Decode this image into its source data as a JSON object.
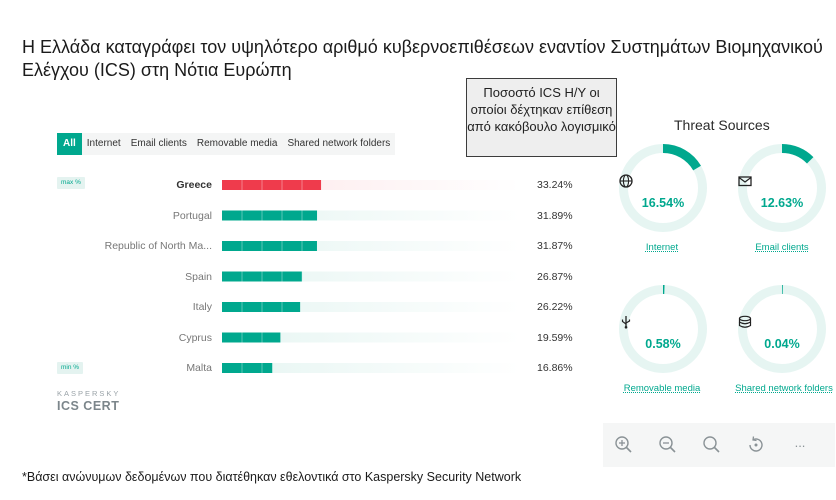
{
  "headline": "Η Ελλάδα καταγράφει τον υψηλότερο αριθμό κυβερνοεπιθέσεων εναντίον Συστημάτων Βιομηχανικού Ελέγχου (ICS) στη Νότια Ευρώπη",
  "tooltip": "Ποσοστό ICS Η/Υ οι οποίοι δέχτηκαν επίθεση από κακόβουλο λογισμικό",
  "tabs": [
    "All",
    "Internet",
    "Email clients",
    "Removable media",
    "Shared network folders"
  ],
  "active_tab": "All",
  "badges": {
    "max": "max %",
    "min": "min %"
  },
  "colors": {
    "accent": "#00a88e",
    "highlight": "#ef3b4c",
    "track": "#e6f5f2",
    "highlight_track": "#fde8ea"
  },
  "chart_data": {
    "type": "bar",
    "orientation": "horizontal",
    "categories": [
      "Greece",
      "Portugal",
      "Republic of North Ma...",
      "Spain",
      "Italy",
      "Cyprus",
      "Malta"
    ],
    "values": [
      33.24,
      31.89,
      31.87,
      26.87,
      26.22,
      19.59,
      16.86
    ],
    "value_labels": [
      "33.24%",
      "31.89%",
      "31.87%",
      "26.87%",
      "26.22%",
      "19.59%",
      "16.86%"
    ],
    "highlighted": "Greece",
    "xlim": [
      0,
      100
    ]
  },
  "logo": {
    "small": "KASPERSKY",
    "big": "ICS CERT"
  },
  "threat_sources": {
    "title": "Threat Sources",
    "items": [
      {
        "label": "Internet",
        "value": "16.54%",
        "pct": 16.54,
        "icon": "globe-icon"
      },
      {
        "label": "Email clients",
        "value": "12.63%",
        "pct": 12.63,
        "icon": "mail-icon"
      },
      {
        "label": "Removable media",
        "value": "0.58%",
        "pct": 0.58,
        "icon": "usb-icon"
      },
      {
        "label": "Shared network folders",
        "value": "0.04%",
        "pct": 0.04,
        "icon": "stack-icon"
      }
    ]
  },
  "toolbar": [
    "zoom-in-icon",
    "zoom-out-icon",
    "search-icon",
    "reset-icon",
    "more-icon"
  ],
  "toolbar_more": "...",
  "footnote": "*Βάσει ανώνυμων δεδομένων που διατέθηκαν εθελοντικά στο Kaspersky Security Network"
}
